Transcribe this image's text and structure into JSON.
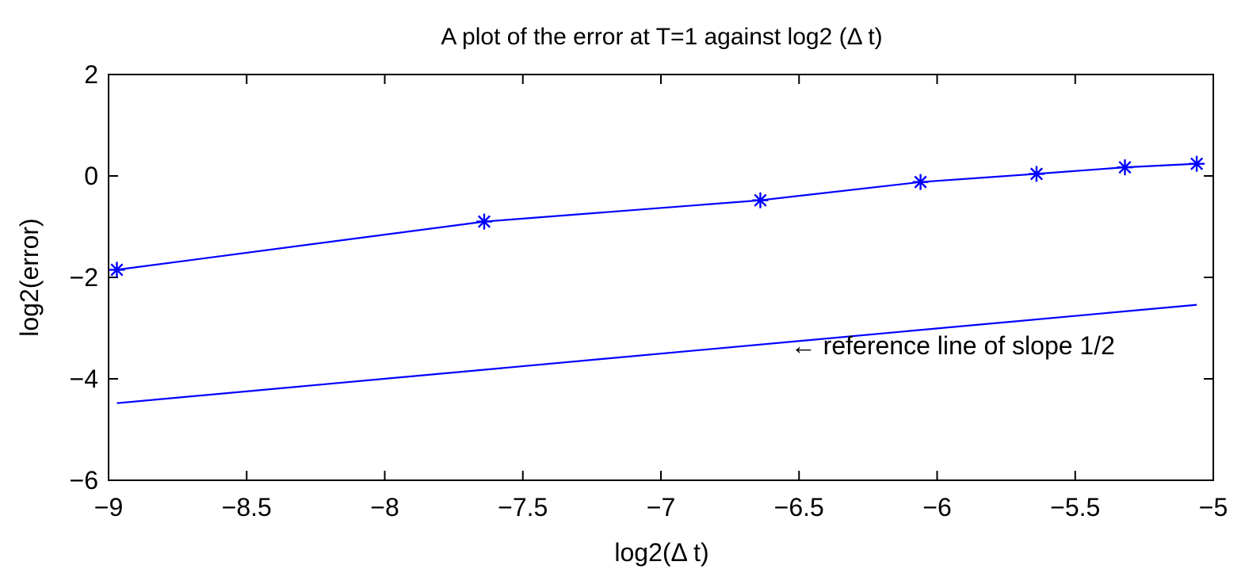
{
  "chart_data": {
    "type": "line",
    "title": "A plot of the error at T=1 against log2 (Δ t)",
    "xlabel": "log2(Δ t)",
    "ylabel": "log2(error)",
    "xlim": [
      -9,
      -5
    ],
    "ylim": [
      -6,
      2
    ],
    "xticks": [
      -9,
      -8.5,
      -8,
      -7.5,
      -7,
      -6.5,
      -6,
      -5.5,
      -5
    ],
    "xtick_labels": [
      "−9",
      "−8.5",
      "−8",
      "−7.5",
      "−7",
      "−6.5",
      "−6",
      "−5.5",
      "−5"
    ],
    "yticks": [
      -6,
      -4,
      -2,
      0,
      2
    ],
    "ytick_labels": [
      "−6",
      "−4",
      "−2",
      "0",
      "2"
    ],
    "grid": false,
    "series": [
      {
        "color": "#0000ff",
        "marker": "asterisk",
        "line": "solid",
        "x": [
          -8.97,
          -7.64,
          -6.64,
          -6.06,
          -5.64,
          -5.32,
          -5.06
        ],
        "y": [
          -1.85,
          -0.9,
          -0.48,
          -0.12,
          0.04,
          0.17,
          0.24
        ]
      },
      {
        "color": "#0000ff",
        "marker": "none",
        "line": "solid",
        "x": [
          -8.97,
          -5.06
        ],
        "y": [
          -4.48,
          -2.54
        ]
      }
    ],
    "annotations": [
      {
        "text": "←  reference line of slope 1/2",
        "x": -6.53,
        "y": -3.34
      }
    ]
  }
}
